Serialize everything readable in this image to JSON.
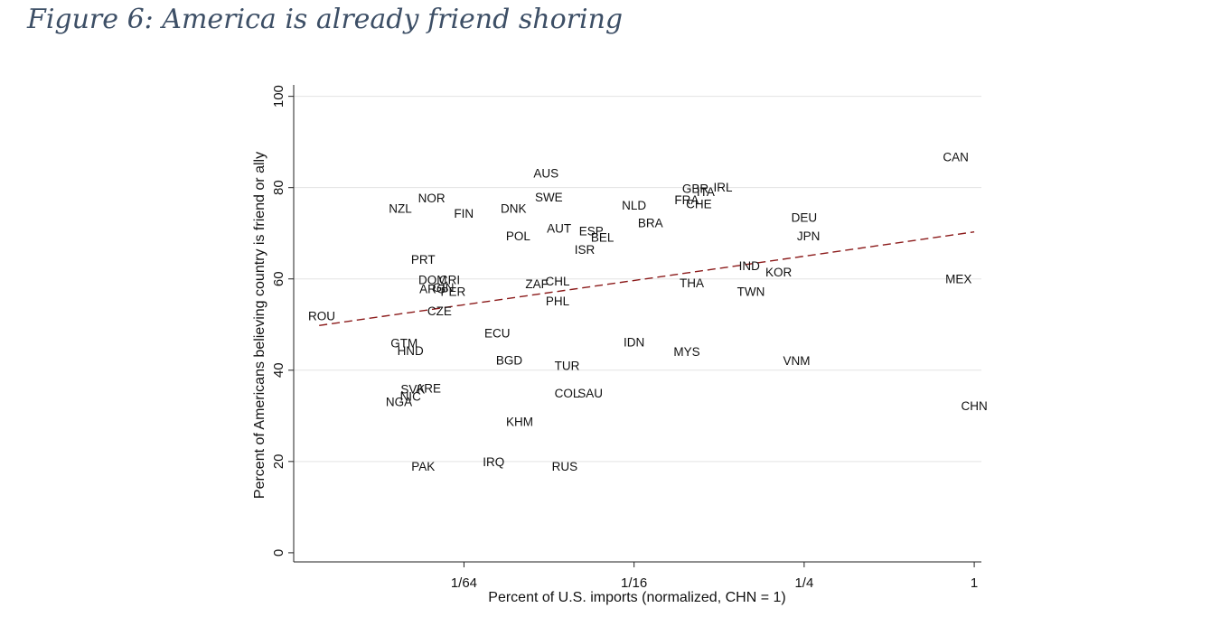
{
  "figure_title": "Figure 6: America is already friend shoring",
  "chart_data": {
    "type": "scatter",
    "xlabel": "Percent of U.S. imports (normalized, CHN = 1)",
    "ylabel": "Percent of Americans believing country is friend or ally",
    "x_scale": "log2",
    "x_ticks": [
      {
        "value": 0.015625,
        "label": "1/64"
      },
      {
        "value": 0.0625,
        "label": "1/16"
      },
      {
        "value": 0.25,
        "label": "1/4"
      },
      {
        "value": 1,
        "label": "1"
      }
    ],
    "y_ticks": [
      0,
      20,
      40,
      60,
      80,
      100
    ],
    "ylim": [
      0,
      100
    ],
    "xlim": [
      0.0039,
      1.06
    ],
    "grid": true,
    "colors": {
      "fit_line": "#8b1a1a",
      "grid": "#e3e3e3"
    },
    "fit_line": {
      "x": [
        0.0048,
        1
      ],
      "y": [
        49.8,
        70.3
      ]
    },
    "points": [
      {
        "label": "CAN",
        "x": 0.86,
        "y": 86.8
      },
      {
        "label": "AUS",
        "x": 0.0305,
        "y": 83.2
      },
      {
        "label": "GBR",
        "x": 0.103,
        "y": 79.8
      },
      {
        "label": "ITA",
        "x": 0.112,
        "y": 79.1
      },
      {
        "label": "IRL",
        "x": 0.129,
        "y": 80.1
      },
      {
        "label": "FRA",
        "x": 0.096,
        "y": 77.4
      },
      {
        "label": "CHE",
        "x": 0.106,
        "y": 76.5
      },
      {
        "label": "NOR",
        "x": 0.012,
        "y": 77.8
      },
      {
        "label": "NZL",
        "x": 0.0093,
        "y": 75.5
      },
      {
        "label": "SWE",
        "x": 0.0312,
        "y": 78.0
      },
      {
        "label": "DNK",
        "x": 0.0234,
        "y": 75.5
      },
      {
        "label": "FIN",
        "x": 0.0156,
        "y": 74.4
      },
      {
        "label": "NLD",
        "x": 0.0625,
        "y": 76.2
      },
      {
        "label": "DEU",
        "x": 0.25,
        "y": 73.5
      },
      {
        "label": "BRA",
        "x": 0.0714,
        "y": 72.3
      },
      {
        "label": "AUT",
        "x": 0.0339,
        "y": 71.1
      },
      {
        "label": "ESP",
        "x": 0.0441,
        "y": 70.5
      },
      {
        "label": "BEL",
        "x": 0.0483,
        "y": 69.2
      },
      {
        "label": "JPN",
        "x": 0.259,
        "y": 69.4
      },
      {
        "label": "POL",
        "x": 0.0243,
        "y": 69.4
      },
      {
        "label": "ISR",
        "x": 0.0418,
        "y": 66.5
      },
      {
        "label": "PRT",
        "x": 0.0112,
        "y": 64.3
      },
      {
        "label": "IND",
        "x": 0.16,
        "y": 62.9
      },
      {
        "label": "KOR",
        "x": 0.203,
        "y": 61.5
      },
      {
        "label": "MEX",
        "x": 0.88,
        "y": 60.0
      },
      {
        "label": "DOM",
        "x": 0.0121,
        "y": 59.8
      },
      {
        "label": "CRI",
        "x": 0.0139,
        "y": 59.8
      },
      {
        "label": "CHL",
        "x": 0.0335,
        "y": 59.6
      },
      {
        "label": "ZAF",
        "x": 0.0283,
        "y": 59.0
      },
      {
        "label": "THA",
        "x": 0.1,
        "y": 59.2
      },
      {
        "label": "ARG",
        "x": 0.0121,
        "y": 57.9
      },
      {
        "label": "GIN",
        "x": 0.0132,
        "y": 58.2
      },
      {
        "label": "PER",
        "x": 0.0143,
        "y": 57.3
      },
      {
        "label": "TWN",
        "x": 0.162,
        "y": 57.3
      },
      {
        "label": "PHL",
        "x": 0.0335,
        "y": 55.2
      },
      {
        "label": "CZE",
        "x": 0.0128,
        "y": 53.0
      },
      {
        "label": "ROU",
        "x": 0.0049,
        "y": 51.9
      },
      {
        "label": "ECU",
        "x": 0.0205,
        "y": 48.2
      },
      {
        "label": "IDN",
        "x": 0.0625,
        "y": 46.2
      },
      {
        "label": "GTM",
        "x": 0.0096,
        "y": 46.0
      },
      {
        "label": "HND",
        "x": 0.0101,
        "y": 44.3
      },
      {
        "label": "MYS",
        "x": 0.0961,
        "y": 44.1
      },
      {
        "label": "BGD",
        "x": 0.0226,
        "y": 42.2
      },
      {
        "label": "VNM",
        "x": 0.235,
        "y": 42.1
      },
      {
        "label": "TUR",
        "x": 0.0362,
        "y": 41.0
      },
      {
        "label": "SVK",
        "x": 0.0103,
        "y": 35.9
      },
      {
        "label": "ARE",
        "x": 0.0117,
        "y": 36.1
      },
      {
        "label": "COL",
        "x": 0.0362,
        "y": 35.0
      },
      {
        "label": "SAU",
        "x": 0.0437,
        "y": 35.0
      },
      {
        "label": "NIC",
        "x": 0.0101,
        "y": 34.3
      },
      {
        "label": "NGA",
        "x": 0.0092,
        "y": 33.1
      },
      {
        "label": "CHN",
        "x": 1,
        "y": 32.2
      },
      {
        "label": "KHM",
        "x": 0.0246,
        "y": 28.8
      },
      {
        "label": "IRQ",
        "x": 0.0199,
        "y": 20.0
      },
      {
        "label": "PAK",
        "x": 0.0112,
        "y": 19.0
      },
      {
        "label": "RUS",
        "x": 0.0355,
        "y": 19.0
      }
    ]
  }
}
